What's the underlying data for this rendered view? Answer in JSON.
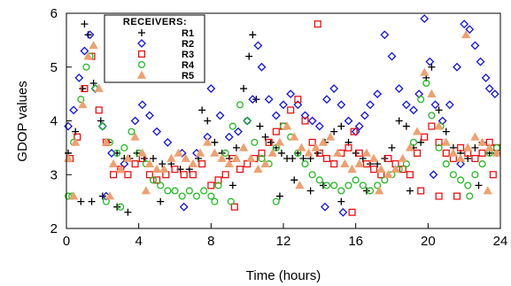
{
  "chart_data": {
    "type": "scatter",
    "xlabel": "Time (hours)",
    "ylabel": "GDOP values",
    "xlim": [
      0,
      24
    ],
    "ylim": [
      2,
      6
    ],
    "x_ticks": [
      "0",
      "4",
      "8",
      "12",
      "16",
      "20",
      "24"
    ],
    "y_ticks": [
      "2",
      "3",
      "4",
      "5",
      "6"
    ],
    "grid": false,
    "legend": {
      "title": "RECEIVERS:",
      "placement": "top-left"
    },
    "series": [
      {
        "name": "R1",
        "marker": "plus",
        "color": "#000000",
        "x": [
          0.1,
          0.5,
          0.9,
          1.0,
          1.2,
          1.5,
          1.9,
          2.3,
          2.8,
          3.2,
          3.5,
          3.9,
          4.3,
          4.8,
          5.3,
          5.8,
          6.3,
          6.8,
          7.3,
          7.5,
          7.8,
          8.2,
          8.6,
          9.0,
          9.4,
          9.8,
          10.1,
          10.3,
          10.5,
          10.7,
          11.0,
          11.3,
          11.6,
          11.9,
          12.2,
          12.5,
          12.8,
          13.1,
          13.5,
          13.9,
          14.3,
          14.8,
          15.2,
          15.6,
          16.0,
          16.4,
          16.8,
          17.2,
          17.6,
          18.0,
          18.4,
          18.8,
          19.2,
          19.6,
          19.9,
          20.2,
          20.6,
          21.0,
          21.4,
          21.8,
          22.2,
          22.6,
          23.0,
          23.4,
          23.8,
          0.8,
          1.4,
          2.0,
          2.8,
          3.4,
          5.2,
          9.2,
          11.8,
          12.6,
          13.5,
          14.2,
          15.2,
          16.6,
          19.0,
          22.8
        ],
        "y": [
          3.4,
          3.8,
          4.6,
          5.8,
          5.6,
          4.7,
          4.0,
          3.6,
          3.4,
          3.3,
          3.3,
          3.4,
          3.3,
          3.3,
          3.2,
          3.2,
          3.1,
          3.1,
          3.3,
          4.2,
          4.0,
          3.6,
          3.4,
          3.3,
          3.5,
          4.6,
          5.2,
          5.6,
          4.4,
          3.9,
          3.7,
          3.6,
          3.5,
          3.4,
          3.3,
          3.3,
          3.4,
          3.3,
          3.3,
          3.4,
          3.6,
          3.8,
          3.9,
          3.6,
          3.4,
          3.3,
          3.2,
          3.2,
          3.3,
          3.5,
          4.0,
          3.9,
          3.5,
          3.6,
          4.8,
          5.0,
          4.2,
          3.8,
          3.5,
          3.4,
          3.3,
          3.5,
          3.6,
          3.4,
          3.4,
          2.5,
          2.5,
          2.6,
          2.4,
          2.3,
          2.5,
          2.8,
          2.6,
          2.9,
          2.7,
          2.8,
          2.5,
          2.7,
          2.7,
          2.8
        ]
      },
      {
        "name": "R2",
        "marker": "diamond",
        "color": "#1010ee",
        "x": [
          0.1,
          0.4,
          0.7,
          1.0,
          1.3,
          1.6,
          2.0,
          2.5,
          3.2,
          3.8,
          4.2,
          4.6,
          5.0,
          5.6,
          6.4,
          7.2,
          7.8,
          8.0,
          8.5,
          9.0,
          9.5,
          10.0,
          10.3,
          10.6,
          10.8,
          11.2,
          11.6,
          12.0,
          12.4,
          12.8,
          13.2,
          13.6,
          14.0,
          14.4,
          14.8,
          15.2,
          15.6,
          16.0,
          16.2,
          16.5,
          16.8,
          17.2,
          17.6,
          18.0,
          18.4,
          18.8,
          19.2,
          19.5,
          19.8,
          20.1,
          20.4,
          20.8,
          21.2,
          21.6,
          22.0,
          22.3,
          22.6,
          22.9,
          23.2,
          23.4,
          23.7,
          2.2,
          6.5,
          14.3,
          15.3,
          20.3,
          21.8
        ],
        "y": [
          3.9,
          4.2,
          4.8,
          5.3,
          5.6,
          4.6,
          3.9,
          3.4,
          3.2,
          4.0,
          4.3,
          4.1,
          3.8,
          3.6,
          3.4,
          3.4,
          3.7,
          4.6,
          4.1,
          3.7,
          3.8,
          4.0,
          4.4,
          5.4,
          5.0,
          4.4,
          4.1,
          4.3,
          4.5,
          4.3,
          4.1,
          4.0,
          3.9,
          4.4,
          4.6,
          4.3,
          4.0,
          3.8,
          3.9,
          4.1,
          4.3,
          4.5,
          5.6,
          5.2,
          4.6,
          4.3,
          4.2,
          4.5,
          5.9,
          5.1,
          4.3,
          4.0,
          4.3,
          5.0,
          5.8,
          5.7,
          5.4,
          5.1,
          4.8,
          4.6,
          4.5,
          2.6,
          2.4,
          2.4,
          2.3,
          3.0,
          3.2
        ]
      },
      {
        "name": "R3",
        "marker": "square",
        "color": "#ee1010",
        "x": [
          0.2,
          0.6,
          1.0,
          1.4,
          1.8,
          2.2,
          2.6,
          3.0,
          3.4,
          3.8,
          4.2,
          4.6,
          5.0,
          5.5,
          6.0,
          6.5,
          7.0,
          7.5,
          8.0,
          8.4,
          8.8,
          9.2,
          9.6,
          10.0,
          10.4,
          10.8,
          11.2,
          11.6,
          12.0,
          12.4,
          12.8,
          13.2,
          13.6,
          14.0,
          14.4,
          14.8,
          15.2,
          15.6,
          15.9,
          16.2,
          16.6,
          17.0,
          17.4,
          17.8,
          18.2,
          18.6,
          19.0,
          19.4,
          19.8,
          20.2,
          20.6,
          21.0,
          21.4,
          21.8,
          22.2,
          22.6,
          23.0,
          23.4,
          23.8,
          9.3,
          13.9,
          15.8,
          19.6,
          20.6,
          21.6,
          23.6
        ],
        "y": [
          3.3,
          3.7,
          4.6,
          5.2,
          4.2,
          3.6,
          3.0,
          3.1,
          3.0,
          3.2,
          3.3,
          3.0,
          2.9,
          3.0,
          3.1,
          3.0,
          3.0,
          3.2,
          2.8,
          2.9,
          3.0,
          3.3,
          3.1,
          3.2,
          3.3,
          3.4,
          3.6,
          3.8,
          3.9,
          4.2,
          4.4,
          4.0,
          3.6,
          3.4,
          3.3,
          3.2,
          3.4,
          3.5,
          3.8,
          3.4,
          3.2,
          3.1,
          3.0,
          3.3,
          3.2,
          3.1,
          3.0,
          3.4,
          3.7,
          3.9,
          3.6,
          3.4,
          3.3,
          3.5,
          3.4,
          3.3,
          3.4,
          3.6,
          3.5,
          2.4,
          5.8,
          2.3,
          2.7,
          2.6,
          2.6,
          3.0
        ]
      },
      {
        "name": "R4",
        "marker": "circle",
        "color": "#22bb22",
        "x": [
          0.1,
          0.4,
          0.8,
          1.1,
          1.3,
          1.6,
          2.0,
          2.4,
          2.8,
          3.2,
          3.6,
          4.0,
          4.4,
          4.8,
          5.2,
          5.6,
          6.0,
          6.4,
          6.8,
          7.2,
          7.6,
          8.0,
          8.4,
          8.8,
          9.2,
          9.6,
          10.0,
          10.4,
          10.8,
          11.2,
          11.6,
          12.0,
          12.4,
          12.8,
          13.2,
          13.6,
          14.0,
          14.4,
          14.8,
          15.2,
          15.6,
          16.0,
          16.4,
          16.8,
          17.2,
          17.6,
          18.0,
          18.4,
          18.8,
          19.2,
          19.6,
          19.9,
          20.2,
          20.6,
          21.0,
          21.4,
          21.8,
          22.2,
          22.6,
          23.0,
          23.4,
          23.8,
          0.3,
          2.2,
          3.0,
          8.2,
          9.1,
          11.6,
          20.7,
          22.3
        ],
        "y": [
          2.6,
          3.6,
          4.4,
          5.0,
          5.2,
          4.6,
          3.9,
          3.6,
          3.4,
          3.5,
          3.8,
          3.4,
          3.2,
          2.9,
          2.8,
          2.7,
          2.7,
          2.6,
          2.7,
          2.6,
          2.7,
          2.6,
          2.8,
          3.4,
          3.9,
          4.3,
          4.0,
          3.6,
          3.3,
          3.2,
          3.5,
          3.9,
          3.7,
          3.4,
          3.2,
          3.0,
          2.9,
          2.8,
          2.8,
          2.7,
          2.8,
          2.9,
          2.8,
          2.7,
          2.8,
          2.9,
          3.0,
          3.1,
          3.2,
          3.6,
          4.4,
          4.7,
          4.1,
          3.5,
          3.2,
          3.0,
          2.9,
          2.8,
          3.0,
          3.2,
          3.4,
          3.5,
          2.6,
          2.5,
          2.4,
          2.5,
          2.5,
          2.5,
          3.9,
          2.6
        ]
      },
      {
        "name": "R5",
        "marker": "triangle",
        "color": "#f0a070",
        "x": [
          0.1,
          0.5,
          0.9,
          1.2,
          1.5,
          1.8,
          2.2,
          2.6,
          3.0,
          3.4,
          3.8,
          4.2,
          4.6,
          5.0,
          5.4,
          5.8,
          6.2,
          6.6,
          7.0,
          7.4,
          7.8,
          8.2,
          8.6,
          9.0,
          9.4,
          9.8,
          10.2,
          10.6,
          11.0,
          11.4,
          11.8,
          12.2,
          12.6,
          13.0,
          13.4,
          13.8,
          14.2,
          14.6,
          15.0,
          15.4,
          15.8,
          16.2,
          16.6,
          17.0,
          17.4,
          17.8,
          18.2,
          18.6,
          19.0,
          19.4,
          19.8,
          20.2,
          20.6,
          21.0,
          21.4,
          21.8,
          22.2,
          22.6,
          23.0,
          23.4,
          23.8,
          0.4,
          2.4,
          4.4,
          12.9,
          17.3,
          22.1,
          23.3
        ],
        "y": [
          3.3,
          3.6,
          4.3,
          5.2,
          5.4,
          4.6,
          3.6,
          3.2,
          3.1,
          3.3,
          3.7,
          3.4,
          3.2,
          3.1,
          3.1,
          3.3,
          3.4,
          3.3,
          3.2,
          3.4,
          3.6,
          3.4,
          3.3,
          3.2,
          3.3,
          3.5,
          3.3,
          3.1,
          3.2,
          3.4,
          3.6,
          3.9,
          3.7,
          3.5,
          3.4,
          3.5,
          3.6,
          3.7,
          3.4,
          3.2,
          3.1,
          3.2,
          3.4,
          3.3,
          3.1,
          3.0,
          3.1,
          3.3,
          3.5,
          3.8,
          4.9,
          4.5,
          3.9,
          3.6,
          3.4,
          3.3,
          3.5,
          3.7,
          3.6,
          3.5,
          3.4,
          2.6,
          2.6,
          2.7,
          2.8,
          2.7,
          5.6,
          2.7
        ]
      }
    ]
  }
}
